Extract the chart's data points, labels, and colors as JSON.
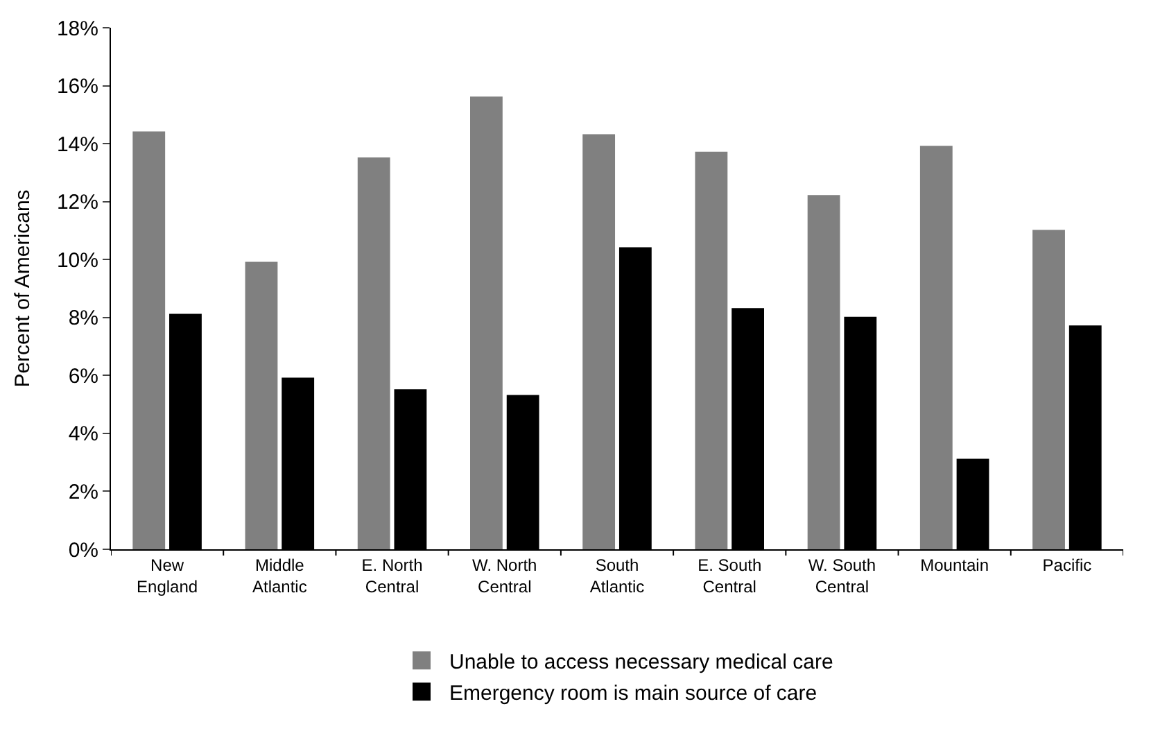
{
  "chart_data": {
    "type": "bar",
    "ylabel": "Percent of Americans",
    "categories": [
      "New England",
      "Middle Atlantic",
      "E. North Central",
      "W. North Central",
      "South Atlantic",
      "E. South Central",
      "W. South Central",
      "Mountain",
      "Pacific"
    ],
    "series": [
      {
        "name": "Unable to access necessary medical care",
        "color": "#808080",
        "values": [
          14.4,
          9.9,
          13.5,
          15.6,
          14.3,
          13.7,
          12.2,
          13.9,
          11.0
        ]
      },
      {
        "name": "Emergency room is main source of care",
        "color": "#000000",
        "values": [
          8.1,
          5.9,
          5.5,
          5.3,
          10.4,
          8.3,
          8.0,
          3.1,
          7.7
        ]
      }
    ],
    "ylim": [
      0,
      18
    ],
    "yticks": [
      {
        "value": 0,
        "label": "0%"
      },
      {
        "value": 2,
        "label": "2%"
      },
      {
        "value": 4,
        "label": "4%"
      },
      {
        "value": 6,
        "label": "6%"
      },
      {
        "value": 8,
        "label": "8%"
      },
      {
        "value": 10,
        "label": "10%"
      },
      {
        "value": 12,
        "label": "12%"
      },
      {
        "value": 14,
        "label": "14%"
      },
      {
        "value": 16,
        "label": "16%"
      },
      {
        "value": 18,
        "label": "18%"
      }
    ],
    "legend": "bottom"
  }
}
